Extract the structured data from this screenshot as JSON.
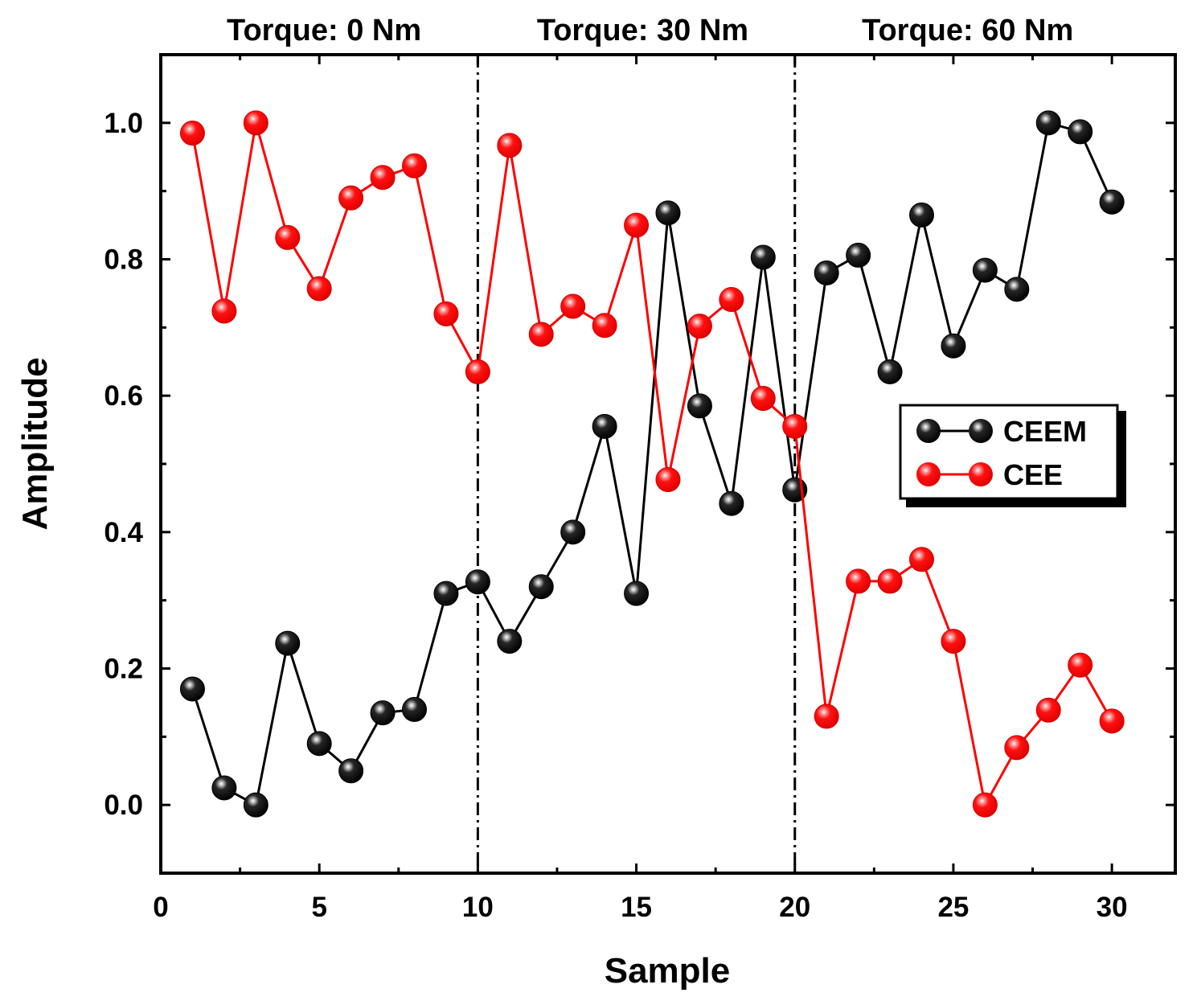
{
  "chart_data": {
    "type": "line",
    "title": "",
    "xlabel": "Sample",
    "ylabel": "Amplitude",
    "xlim": [
      0,
      32
    ],
    "ylim": [
      -0.1,
      1.1
    ],
    "xticks": [
      0,
      5,
      10,
      15,
      20,
      25,
      30
    ],
    "xtick_labels": [
      "0",
      "5",
      "10",
      "15",
      "20",
      "25",
      "30"
    ],
    "yticks": [
      0.0,
      0.2,
      0.4,
      0.6,
      0.8,
      1.0
    ],
    "ytick_labels": [
      "0.0",
      "0.2",
      "0.4",
      "0.6",
      "0.8",
      "1.0"
    ],
    "grid": false,
    "legend_position": "right",
    "separators": [
      10,
      20
    ],
    "regions": [
      {
        "label": "Torque: 0 Nm",
        "center": 5.15
      },
      {
        "label": "Torque: 30 Nm",
        "center": 15.2
      },
      {
        "label": "Torque: 60 Nm",
        "center": 25.45
      }
    ],
    "x": [
      1,
      2,
      3,
      4,
      5,
      6,
      7,
      8,
      9,
      10,
      11,
      12,
      13,
      14,
      15,
      16,
      17,
      18,
      19,
      20,
      21,
      22,
      23,
      24,
      25,
      26,
      27,
      28,
      29,
      30
    ],
    "series": [
      {
        "name": "CEEM",
        "color": "#000000",
        "values": [
          0.17,
          0.025,
          0.0,
          0.237,
          0.09,
          0.05,
          0.135,
          0.14,
          0.31,
          0.327,
          0.24,
          0.32,
          0.4,
          0.555,
          0.31,
          0.868,
          0.585,
          0.442,
          0.803,
          0.462,
          0.78,
          0.806,
          0.635,
          0.865,
          0.673,
          0.784,
          0.756,
          1.0,
          0.987,
          0.884
        ]
      },
      {
        "name": "CEE",
        "color": "#ff0000",
        "values": [
          0.985,
          0.724,
          1.0,
          0.832,
          0.757,
          0.89,
          0.92,
          0.937,
          0.72,
          0.635,
          0.967,
          0.69,
          0.731,
          0.703,
          0.85,
          0.477,
          0.702,
          0.741,
          0.596,
          0.555,
          0.13,
          0.328,
          0.328,
          0.36,
          0.24,
          0.0,
          0.084,
          0.139,
          0.205,
          0.123
        ]
      }
    ]
  }
}
